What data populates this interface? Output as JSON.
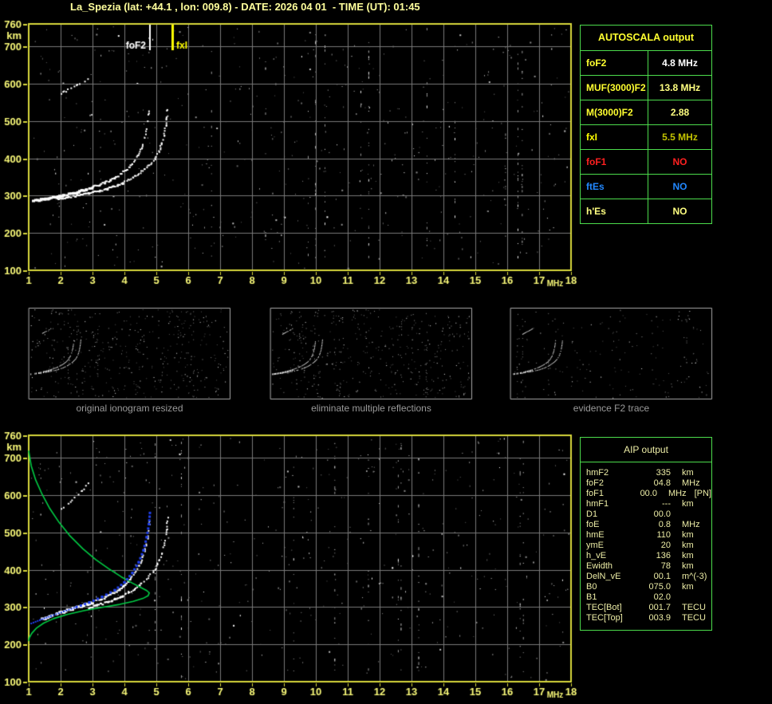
{
  "header": {
    "title": "La_Spezia (lat: +44.1 , lon: 009.8) - DATE: 2026 04 01  - TIME (UT): 01:45"
  },
  "colors": {
    "axis_label": "#F8F878",
    "plot_border": "#D8D83C",
    "grid": "#7A7A7A",
    "table_border": "#4CDC4C",
    "title_text": "#FFFF9C",
    "caption_text": "#9A9A9A",
    "aip_text": "#EDEDA6",
    "trace_white": "#FFFFFF",
    "profile_green": "#00CC44",
    "fitted_blue": "#2040EE",
    "marker_fof2": "#FFFFFF",
    "marker_fxi": "#FFFF00"
  },
  "autoscala_table": {
    "title": "AUTOSCALA output",
    "rows": [
      {
        "label": "foF2",
        "value": "4.8 MHz",
        "label_color": "#FFFF30",
        "value_color": "#FFFFFF"
      },
      {
        "label": "MUF(3000)F2",
        "value": "13.8 MHz",
        "label_color": "#FFFF30",
        "value_color": "#FFFF80"
      },
      {
        "label": "M(3000)F2",
        "value": "2.88",
        "label_color": "#FFFF30",
        "value_color": "#FFFF80"
      },
      {
        "label": "fxI",
        "value": "5.5 MHz",
        "label_color": "#FFFF00",
        "value_color": "#C2C200"
      },
      {
        "label": "foF1",
        "value": "NO",
        "label_color": "#FF2020",
        "value_color": "#FF2020"
      },
      {
        "label": "ftEs",
        "value": "NO",
        "label_color": "#2288FF",
        "value_color": "#2288FF"
      },
      {
        "label": "h'Es",
        "value": "NO",
        "label_color": "#FFFF80",
        "value_color": "#FFFF80"
      }
    ]
  },
  "aip_table": {
    "title": "AIP output",
    "rows": [
      {
        "label": "hmF2",
        "value": "335",
        "unit": "km",
        "note": ""
      },
      {
        "label": "foF2",
        "value": "04.8",
        "unit": "MHz",
        "note": ""
      },
      {
        "label": "foF1",
        "value": "00.0",
        "unit": "MHz",
        "note": "[PN]"
      },
      {
        "label": "hmF1",
        "value": "---",
        "unit": "km",
        "note": ""
      },
      {
        "label": "D1",
        "value": "00.0",
        "unit": "",
        "note": ""
      },
      {
        "label": "foE",
        "value": "0.8",
        "unit": "MHz",
        "note": ""
      },
      {
        "label": "hmE",
        "value": "110",
        "unit": "km",
        "note": ""
      },
      {
        "label": "ymE",
        "value": "20",
        "unit": "km",
        "note": ""
      },
      {
        "label": "h_vE",
        "value": "136",
        "unit": "km",
        "note": ""
      },
      {
        "label": "Ewidth",
        "value": "78",
        "unit": "km",
        "note": ""
      },
      {
        "label": "DelN_vE",
        "value": "00.1",
        "unit": "m^(-3)",
        "note": ""
      },
      {
        "label": "B0",
        "value": "075.0",
        "unit": "km",
        "note": ""
      },
      {
        "label": "B1",
        "value": "02.0",
        "unit": "",
        "note": ""
      },
      {
        "label": "TEC[Bot]",
        "value": "001.7",
        "unit": "TECU",
        "note": ""
      },
      {
        "label": "TEC[Top]",
        "value": "003.9",
        "unit": "TECU",
        "note": ""
      }
    ]
  },
  "thumbnails": [
    {
      "caption": "original ionogram resized"
    },
    {
      "caption": "eliminate multiple reflections"
    },
    {
      "caption": "evidence F2 trace"
    }
  ],
  "chart_data": [
    {
      "type": "scatter",
      "title": "scaled ionogram with AUTOSCALA markers",
      "xlabel": "MHz",
      "ylabel": "km",
      "xlim": [
        1,
        18
      ],
      "ylim": [
        100,
        760
      ],
      "x_ticks": [
        1,
        2,
        3,
        4,
        5,
        6,
        7,
        8,
        9,
        10,
        11,
        12,
        13,
        14,
        15,
        16,
        17,
        18
      ],
      "y_ticks": [
        100,
        200,
        300,
        400,
        500,
        600,
        700,
        760
      ],
      "grid": true,
      "markers": [
        {
          "label": "foF2",
          "mhz": 4.8,
          "color": "#FFFFFF"
        },
        {
          "label": "fxI",
          "mhz": 5.5,
          "color": "#FFFF00"
        }
      ],
      "series": [
        {
          "name": "O-mode F2 trace",
          "color": "#FFFFFF",
          "points": [
            [
              1.15,
              287
            ],
            [
              1.5,
              291
            ],
            [
              1.9,
              297
            ],
            [
              2.3,
              305
            ],
            [
              2.7,
              314
            ],
            [
              3.1,
              325
            ],
            [
              3.5,
              339
            ],
            [
              3.8,
              353
            ],
            [
              4.1,
              371
            ],
            [
              4.3,
              389
            ],
            [
              4.45,
              410
            ],
            [
              4.58,
              437
            ],
            [
              4.68,
              468
            ],
            [
              4.74,
              500
            ],
            [
              4.78,
              535
            ]
          ]
        },
        {
          "name": "X-mode F2 trace",
          "color": "#FFFFFF",
          "points": [
            [
              1.9,
              291
            ],
            [
              2.4,
              298
            ],
            [
              2.9,
              306
            ],
            [
              3.4,
              316
            ],
            [
              3.9,
              331
            ],
            [
              4.3,
              349
            ],
            [
              4.7,
              374
            ],
            [
              4.95,
              396
            ],
            [
              5.12,
              424
            ],
            [
              5.24,
              458
            ],
            [
              5.32,
              498
            ],
            [
              5.37,
              540
            ]
          ]
        },
        {
          "name": "second-hop echo",
          "color": "#FFFFFF",
          "points": [
            [
              2.0,
              572
            ],
            [
              2.2,
              582
            ],
            [
              2.45,
              593
            ],
            [
              2.7,
              604
            ],
            [
              2.9,
              616
            ]
          ]
        }
      ],
      "noise": {
        "dots": 520,
        "stripes": 12
      }
    },
    {
      "type": "line",
      "title": "ionogram with AIP electron density profile",
      "xlabel": "MHz",
      "ylabel": "km",
      "xlim": [
        1,
        18
      ],
      "ylim": [
        100,
        760
      ],
      "x_ticks": [
        1,
        2,
        3,
        4,
        5,
        6,
        7,
        8,
        9,
        10,
        11,
        12,
        13,
        14,
        15,
        16,
        17,
        18
      ],
      "y_ticks": [
        100,
        200,
        300,
        400,
        500,
        600,
        700,
        760
      ],
      "grid": true,
      "series": [
        {
          "name": "O-mode F2 trace",
          "color": "#FFFFFF",
          "points": [
            [
              1.45,
              268
            ],
            [
              1.9,
              283
            ],
            [
              2.4,
              297
            ],
            [
              2.9,
              310
            ],
            [
              3.4,
              325
            ],
            [
              3.8,
              344
            ],
            [
              4.1,
              365
            ],
            [
              4.35,
              391
            ],
            [
              4.52,
              420
            ],
            [
              4.65,
              452
            ],
            [
              4.73,
              487
            ],
            [
              4.78,
              523
            ],
            [
              4.8,
              548
            ]
          ]
        },
        {
          "name": "X-mode F2 trace",
          "color": "#FFFFFF",
          "points": [
            [
              2.9,
              298
            ],
            [
              3.4,
              311
            ],
            [
              3.9,
              327
            ],
            [
              4.3,
              347
            ],
            [
              4.7,
              375
            ],
            [
              4.95,
              400
            ],
            [
              5.12,
              430
            ],
            [
              5.25,
              465
            ],
            [
              5.33,
              505
            ],
            [
              5.37,
              545
            ]
          ]
        },
        {
          "name": "second-hop echo",
          "color": "#FFFFFF",
          "points": [
            [
              2.05,
              562
            ],
            [
              2.3,
              580
            ],
            [
              2.55,
              600
            ],
            [
              2.75,
              620
            ],
            [
              2.9,
              638
            ]
          ]
        },
        {
          "name": "electron density profile",
          "color": "#00CC44",
          "points": [
            [
              1.0,
              718
            ],
            [
              1.08,
              678
            ],
            [
              1.22,
              640
            ],
            [
              1.42,
              602
            ],
            [
              1.66,
              564
            ],
            [
              1.95,
              527
            ],
            [
              2.3,
              490
            ],
            [
              2.7,
              456
            ],
            [
              3.1,
              427
            ],
            [
              3.5,
              403
            ],
            [
              3.9,
              381
            ],
            [
              4.25,
              364
            ],
            [
              4.52,
              352
            ],
            [
              4.7,
              344
            ],
            [
              4.78,
              338
            ],
            [
              4.74,
              330
            ],
            [
              4.58,
              323
            ],
            [
              4.28,
              315
            ],
            [
              3.85,
              307
            ],
            [
              3.3,
              299
            ],
            [
              2.72,
              290
            ],
            [
              2.2,
              280
            ],
            [
              1.78,
              269
            ],
            [
              1.47,
              257
            ],
            [
              1.25,
              244
            ],
            [
              1.1,
              230
            ],
            [
              1.02,
              218
            ],
            [
              1.0,
              210
            ]
          ]
        },
        {
          "name": "fitted trace",
          "color": "#2040EE",
          "points": [
            [
              1.08,
              256
            ],
            [
              1.35,
              265
            ],
            [
              1.7,
              276
            ],
            [
              2.1,
              288
            ],
            [
              2.5,
              300
            ],
            [
              2.9,
              312
            ],
            [
              3.3,
              327
            ],
            [
              3.7,
              345
            ],
            [
              4.0,
              366
            ],
            [
              4.25,
              391
            ],
            [
              4.45,
              420
            ],
            [
              4.6,
              452
            ],
            [
              4.7,
              487
            ],
            [
              4.77,
              522
            ],
            [
              4.8,
              552
            ]
          ]
        }
      ],
      "noise": {
        "dots": 480,
        "stripes": 10
      }
    }
  ]
}
